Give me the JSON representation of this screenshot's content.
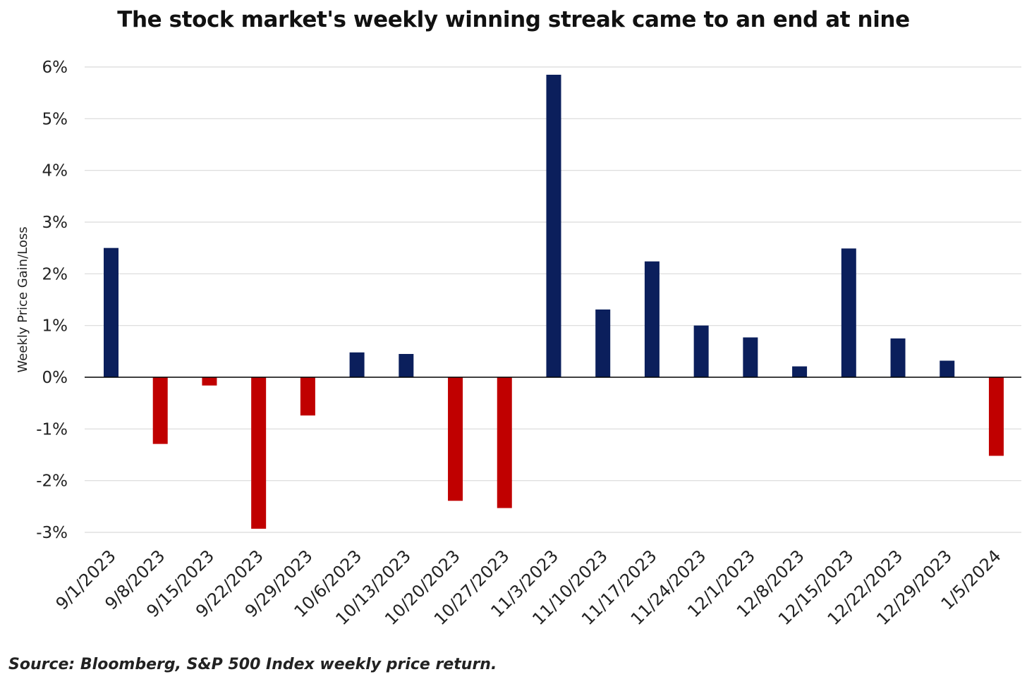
{
  "chart_data": {
    "type": "bar",
    "title": "The stock market's weekly winning streak came to an end at nine",
    "ylabel": "Weekly Price Gain/Loss",
    "xlabel": "",
    "ylim": [
      -3,
      6
    ],
    "yticks": [
      6,
      5,
      4,
      3,
      2,
      1,
      0,
      -1,
      -2,
      -3
    ],
    "ytick_labels": [
      "6%",
      "5%",
      "4%",
      "3%",
      "2%",
      "1%",
      "0%",
      "-1%",
      "-2%",
      "-3%"
    ],
    "categories": [
      "9/1/2023",
      "9/8/2023",
      "9/15/2023",
      "9/22/2023",
      "9/29/2023",
      "10/6/2023",
      "10/13/2023",
      "10/20/2023",
      "10/27/2023",
      "11/3/2023",
      "11/10/2023",
      "11/17/2023",
      "11/24/2023",
      "12/1/2023",
      "12/8/2023",
      "12/15/2023",
      "12/22/2023",
      "12/29/2023",
      "1/5/2024"
    ],
    "values": [
      2.5,
      -1.29,
      -0.16,
      -2.93,
      -0.74,
      0.48,
      0.45,
      -2.39,
      -2.53,
      5.85,
      1.31,
      2.24,
      1.0,
      0.77,
      0.21,
      2.49,
      0.75,
      0.32,
      -1.52
    ],
    "colors": {
      "positive": "#0b1f5c",
      "negative": "#c00000",
      "grid": "#d9d9d9",
      "axis": "#000000"
    },
    "grid": true,
    "legend": "none"
  },
  "source": "Source: Bloomberg, S&P 500 Index weekly price return."
}
